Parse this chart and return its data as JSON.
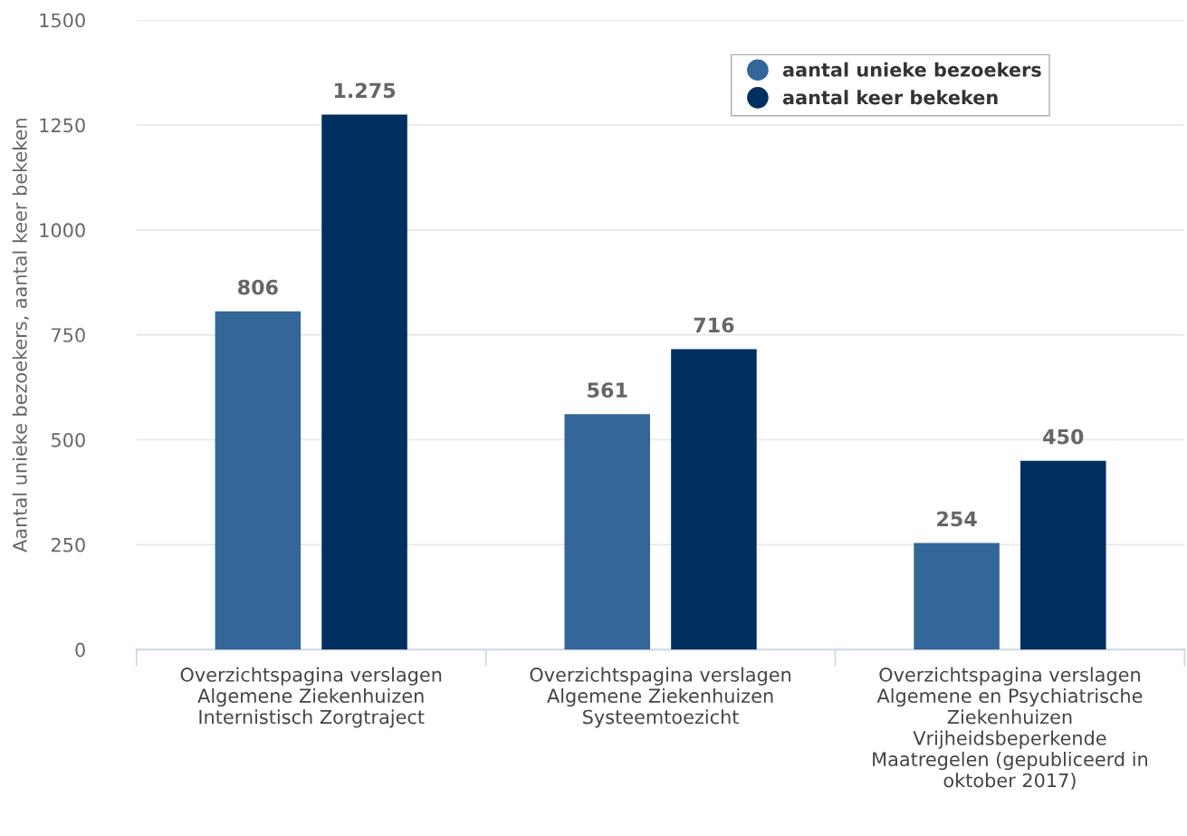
{
  "chart_data": {
    "type": "bar",
    "ylabel": "Aantal unieke bezoekers, aantal keer bekeken",
    "categories": [
      "Overzichtspagina verslagen\nAlgemene Ziekenhuizen\nInternistisch Zorgtraject",
      "Overzichtspagina verslagen\nAlgemene Ziekenhuizen\nSysteemtoezicht",
      "Overzichtspagina verslagen\nAlgemene en Psychiatrische\nZiekenhuizen\nVrijheidsbeperkende\nMaatregelen (gepubliceerd in\noktober 2017)"
    ],
    "series": [
      {
        "name": "aantal unieke bezoekers",
        "color": "#336699",
        "values": [
          806,
          561,
          254
        ],
        "value_labels": [
          "806",
          "561",
          "254"
        ]
      },
      {
        "name": "aantal keer bekeken",
        "color": "#003060",
        "values": [
          1275,
          716,
          450
        ],
        "value_labels": [
          "1.275",
          "716",
          "450"
        ]
      }
    ],
    "ylim": [
      0,
      1500
    ],
    "yticks": [
      0,
      250,
      500,
      750,
      1000,
      1250,
      1500
    ],
    "grid": "y",
    "legend": "top right",
    "marker": "circle"
  }
}
